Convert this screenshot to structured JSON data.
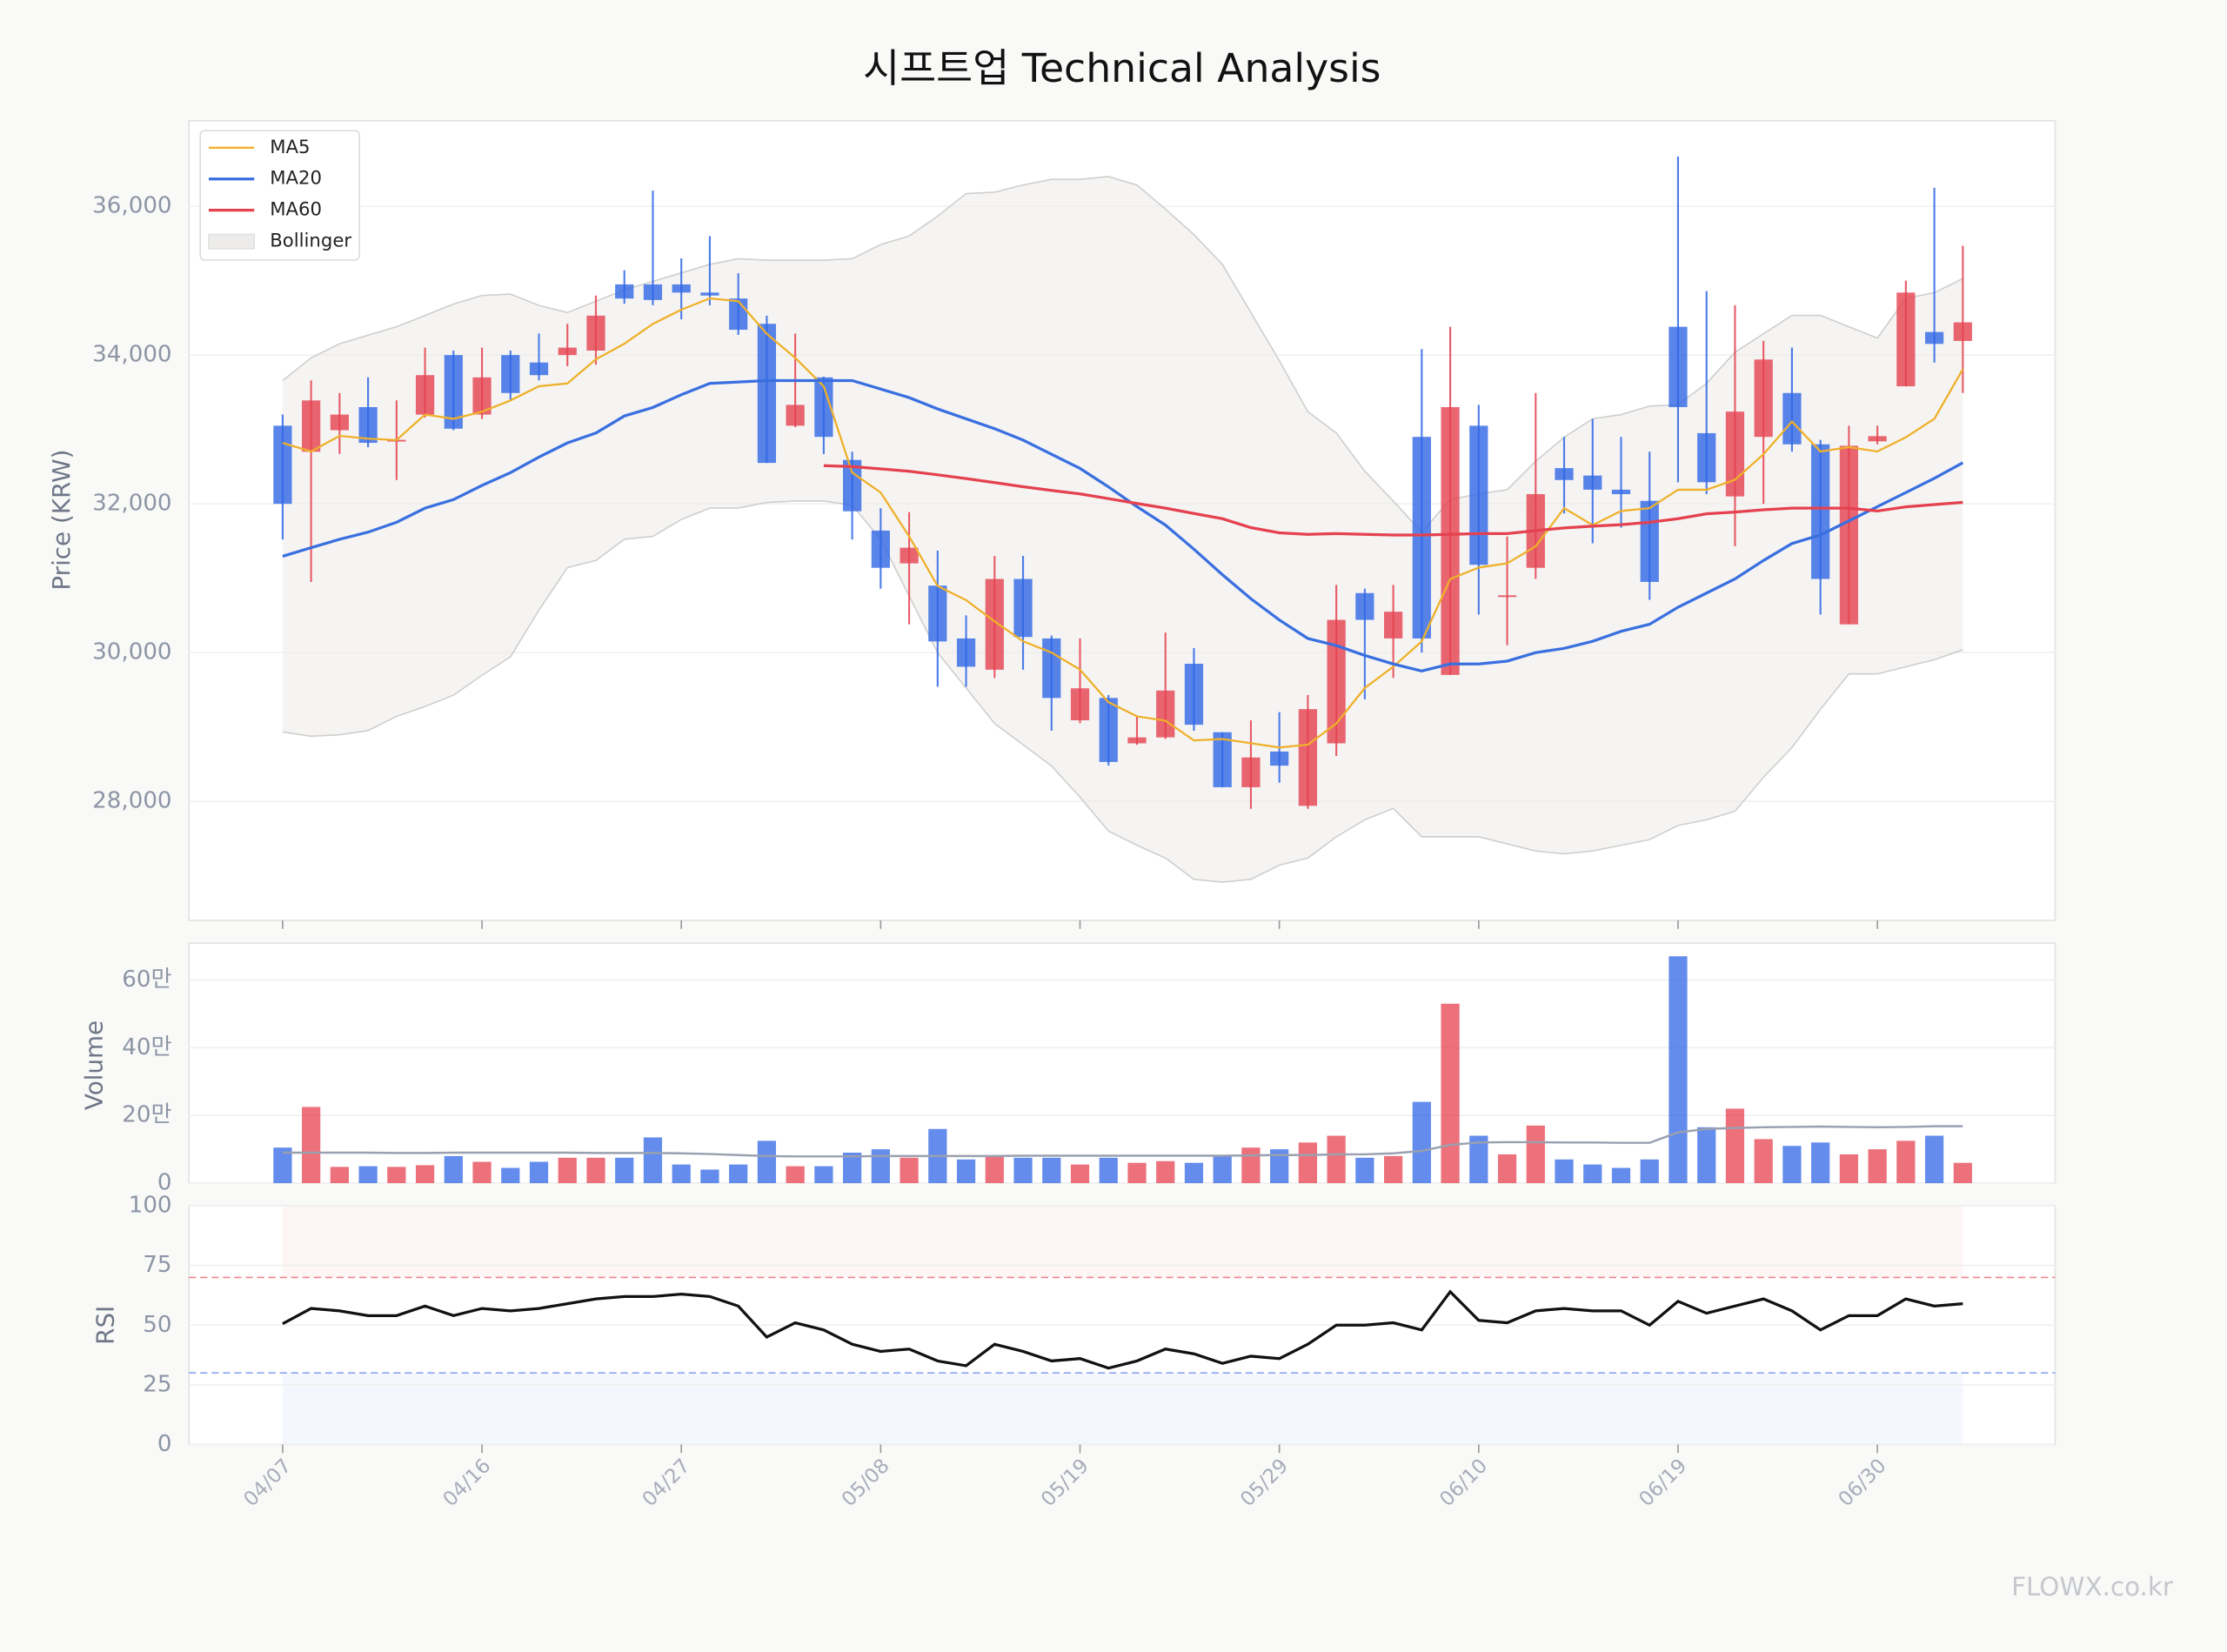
{
  "chart_data": [
    {
      "type": "candlestick",
      "title": "시프트업 Technical Analysis",
      "y_label": "Price (KRW)",
      "categories": [
        "04/07",
        null,
        null,
        null,
        null,
        null,
        null,
        "04/16",
        null,
        null,
        null,
        null,
        null,
        null,
        "04/27",
        null,
        null,
        null,
        null,
        null,
        null,
        "05/08",
        null,
        null,
        null,
        null,
        null,
        null,
        "05/19",
        null,
        null,
        null,
        null,
        null,
        null,
        "05/29",
        null,
        null,
        null,
        null,
        null,
        null,
        "06/10",
        null,
        null,
        null,
        null,
        null,
        null,
        "06/19",
        null,
        null,
        null,
        null,
        null,
        null,
        "06/30",
        null,
        null,
        null
      ],
      "open": [
        33050,
        32700,
        32990,
        33300,
        32840,
        33200,
        34000,
        33200,
        34000,
        33900,
        34000,
        34060,
        34950,
        34950,
        34950,
        34840,
        34760,
        34420,
        33050,
        33700,
        32590,
        31640,
        31200,
        30900,
        30190,
        29770,
        30990,
        30190,
        29090,
        29390,
        28780,
        28860,
        29850,
        28930,
        28190,
        28670,
        27940,
        28780,
        30800,
        30190,
        32900,
        29700,
        33050,
        30750,
        31140,
        32480,
        32380,
        32190,
        32040,
        34380,
        32950,
        32100,
        32900,
        33490,
        32800,
        30380,
        32840,
        33580,
        34310,
        34190
      ],
      "high": [
        33200,
        33660,
        33490,
        33700,
        33390,
        34100,
        34060,
        34100,
        34060,
        34290,
        34420,
        34800,
        35140,
        36210,
        35300,
        35600,
        35100,
        34530,
        34290,
        33710,
        32700,
        31940,
        31890,
        31370,
        30500,
        31300,
        31300,
        30230,
        30190,
        29430,
        29140,
        30270,
        30060,
        28930,
        29090,
        29200,
        29430,
        30910,
        30860,
        30910,
        34080,
        34380,
        33330,
        31560,
        33490,
        32900,
        33140,
        32900,
        32700,
        36670,
        34860,
        34670,
        34190,
        34100,
        32860,
        33050,
        33050,
        35000,
        36250,
        35470
      ],
      "low": [
        31520,
        30950,
        32670,
        32760,
        32320,
        33160,
        32990,
        33140,
        33390,
        33660,
        33850,
        33870,
        34690,
        34670,
        34480,
        34670,
        34270,
        32550,
        33030,
        32670,
        31520,
        30860,
        30380,
        29540,
        29540,
        29660,
        29770,
        28950,
        29050,
        28480,
        28760,
        28840,
        28950,
        28190,
        27900,
        28250,
        27900,
        28610,
        29370,
        29660,
        30000,
        29700,
        30510,
        30100,
        30990,
        31870,
        31470,
        31680,
        30710,
        32290,
        32130,
        31430,
        32000,
        32700,
        30510,
        30380,
        32800,
        33580,
        33900,
        33490
      ],
      "close": [
        32000,
        33390,
        33200,
        32820,
        32860,
        33730,
        33010,
        33700,
        33490,
        33730,
        34100,
        34530,
        34760,
        34740,
        34840,
        34800,
        34340,
        32550,
        33330,
        32900,
        31900,
        31140,
        31410,
        30150,
        29810,
        30990,
        30210,
        29390,
        29520,
        28530,
        28860,
        29490,
        29030,
        28190,
        28590,
        28480,
        29240,
        30440,
        30440,
        30550,
        30190,
        33300,
        31180,
        30770,
        32130,
        32320,
        32190,
        32130,
        30950,
        33300,
        32290,
        33240,
        33940,
        32800,
        30990,
        32780,
        32910,
        34840,
        34150,
        34440
      ],
      "up_color": "#e5414f",
      "down_color": "#2f66e6",
      "ylim": [
        26400,
        37150
      ],
      "yticks": [
        {
          "value": 28000,
          "label": "28,000"
        },
        {
          "value": 30000,
          "label": "30,000"
        },
        {
          "value": 32000,
          "label": "32,000"
        },
        {
          "value": 34000,
          "label": "34,000"
        },
        {
          "value": 36000,
          "label": "36,000"
        }
      ],
      "grid": true,
      "legend": "upper left",
      "series": [
        {
          "name": "MA5",
          "color": "#efb02a",
          "values": [
            32819,
            32704,
            32914,
            32876,
            32857,
            33200,
            33143,
            33238,
            33390,
            33581,
            33619,
            33943,
            34152,
            34419,
            34610,
            34762,
            34724,
            34286,
            33962,
            33581,
            32419,
            32152,
            31562,
            30895,
            30705,
            30419,
            30152,
            30000,
            29771,
            29333,
            29143,
            29085,
            28819,
            28838,
            28781,
            28724,
            28762,
            29047,
            29524,
            29810,
            30152,
            30990,
            31143,
            31200,
            31428,
            31942,
            31714,
            31904,
            31942,
            32190,
            32190,
            32324,
            32666,
            33105,
            32704,
            32762,
            32704,
            32895,
            33143,
            33810
          ]
        },
        {
          "name": "MA20",
          "color": "#3a6fe0",
          "values": [
            31295,
            31410,
            31523,
            31619,
            31752,
            31942,
            32057,
            32247,
            32419,
            32628,
            32819,
            32952,
            33181,
            33295,
            33467,
            33619,
            33638,
            33657,
            33657,
            33657,
            33657,
            33543,
            33428,
            33276,
            33143,
            33010,
            32857,
            32666,
            32476,
            32228,
            31962,
            31714,
            31390,
            31047,
            30724,
            30438,
            30190,
            30095,
            29962,
            29847,
            29752,
            29847,
            29847,
            29885,
            30000,
            30057,
            30152,
            30286,
            30381,
            30610,
            30800,
            30990,
            31238,
            31466,
            31581,
            31771,
            31962,
            32152,
            32343,
            32552
          ]
        },
        {
          "name": "MA60",
          "color": "#e5414f",
          "values": [
            null,
            null,
            null,
            null,
            null,
            null,
            null,
            null,
            null,
            null,
            null,
            null,
            null,
            null,
            null,
            null,
            null,
            null,
            null,
            32514,
            32500,
            32470,
            32438,
            32390,
            32340,
            32286,
            32230,
            32180,
            32133,
            32070,
            32005,
            31942,
            31870,
            31800,
            31680,
            31610,
            31590,
            31600,
            31590,
            31581,
            31581,
            31590,
            31600,
            31600,
            31640,
            31676,
            31700,
            31720,
            31752,
            31800,
            31866,
            31890,
            31920,
            31942,
            31942,
            31942,
            31904,
            31960,
            31990,
            32019
          ]
        }
      ],
      "band": {
        "name": "Bollinger",
        "color": "#eeecea",
        "edge": "#cfcfcf",
        "upper": [
          33657,
          33962,
          34152,
          34267,
          34381,
          34533,
          34686,
          34800,
          34819,
          34667,
          34571,
          34724,
          34876,
          34990,
          35105,
          35219,
          35295,
          35276,
          35276,
          35276,
          35295,
          35486,
          35600,
          35867,
          36171,
          36190,
          36286,
          36362,
          36362,
          36400,
          36286,
          35962,
          35619,
          35219,
          34571,
          33924,
          33238,
          32952,
          32438,
          32038,
          31619,
          32057,
          32133,
          32190,
          32571,
          32895,
          33143,
          33200,
          33314,
          33333,
          33619,
          34038,
          34286,
          34533,
          34533,
          34381,
          34229,
          34762,
          34838,
          35028
        ],
        "lower": [
          28933,
          28876,
          28895,
          28952,
          29143,
          29276,
          29428,
          29695,
          29943,
          30571,
          31143,
          31238,
          31523,
          31562,
          31790,
          31942,
          31942,
          32019,
          32038,
          32038,
          31981,
          31523,
          30762,
          30000,
          29524,
          29047,
          28762,
          28476,
          28057,
          27600,
          27410,
          27238,
          26952,
          26914,
          26952,
          27143,
          27238,
          27524,
          27752,
          27905,
          27524,
          27524,
          27524,
          27428,
          27333,
          27295,
          27333,
          27410,
          27486,
          27676,
          27752,
          27867,
          28324,
          28724,
          29238,
          29714,
          29714,
          29810,
          29905,
          30038
        ]
      }
    },
    {
      "type": "bar",
      "y_label": "Volume",
      "values": [
        105000,
        225000,
        48000,
        50000,
        48000,
        53000,
        80000,
        63000,
        45000,
        63000,
        75000,
        75000,
        75000,
        135000,
        55000,
        40000,
        55000,
        125000,
        50000,
        50000,
        90000,
        100000,
        75000,
        160000,
        70000,
        80000,
        75000,
        75000,
        55000,
        75000,
        60000,
        65000,
        60000,
        80000,
        105000,
        100000,
        120000,
        140000,
        75000,
        80000,
        240000,
        530000,
        140000,
        85000,
        170000,
        70000,
        55000,
        45000,
        70000,
        670000,
        165000,
        220000,
        130000,
        110000,
        120000,
        85000,
        100000,
        125000,
        140000,
        60000
      ],
      "line": {
        "color": "#9aa0b0",
        "values": [
          90000,
          90000,
          90000,
          90000,
          89000,
          89000,
          90000,
          90000,
          90000,
          90000,
          90000,
          89000,
          89000,
          89000,
          88000,
          86000,
          83000,
          80000,
          79000,
          79000,
          79000,
          80000,
          80000,
          80000,
          80000,
          80000,
          81000,
          81000,
          81000,
          81000,
          81000,
          81000,
          81000,
          81000,
          82000,
          83000,
          83000,
          85000,
          85000,
          88000,
          95000,
          113000,
          120000,
          121000,
          121000,
          120000,
          120000,
          119000,
          119000,
          150000,
          160000,
          163000,
          165000,
          166000,
          167000,
          166000,
          165000,
          166000,
          168000,
          168000
        ]
      },
      "ylim": [
        0,
        709000
      ],
      "yticks": [
        0,
        {
          "value": 200000,
          "label": "20만"
        },
        {
          "value": 400000,
          "label": "40만"
        },
        {
          "value": 600000,
          "label": "60만"
        }
      ],
      "grid": true
    },
    {
      "type": "line",
      "y_label": "RSI",
      "color": "#111111",
      "values": [
        50.6,
        57,
        56,
        54,
        54,
        58,
        54,
        57,
        56,
        57,
        59,
        61,
        62,
        62,
        63,
        62,
        58,
        45,
        51,
        48,
        42,
        39,
        40,
        35,
        33,
        42,
        39,
        35,
        36,
        32,
        35,
        40,
        38,
        34,
        37,
        36,
        42,
        50,
        50,
        51,
        48,
        64,
        52,
        51,
        56,
        57,
        56,
        56,
        50,
        60,
        55,
        58,
        61,
        56,
        48,
        54,
        54,
        61,
        58,
        59
      ],
      "ylim": [
        0,
        100
      ],
      "yticks": [
        0,
        25,
        50,
        75,
        100
      ],
      "grid": true,
      "overbought": 70,
      "oversold": 30,
      "overbought_color": "#e8505b",
      "oversold_color": "#5b7ff0"
    }
  ],
  "watermark": "FLOWX.co.kr"
}
